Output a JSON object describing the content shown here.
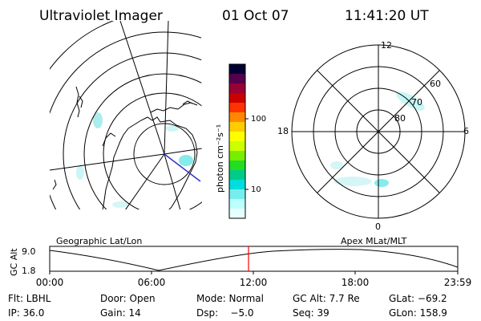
{
  "header": {
    "instrument": "Ultraviolet Imager",
    "date": "01 Oct 07",
    "time": "11:41:20 UT"
  },
  "left_panel": {
    "caption": "Geographic Lat/Lon"
  },
  "right_panel": {
    "caption": "Apex MLat/MLT",
    "mlt_labels": {
      "top": "12",
      "bottom": "0",
      "left": "18",
      "right": "6"
    },
    "mlat_labels": [
      "60",
      "70",
      "80"
    ]
  },
  "colorbar": {
    "label": "photon cm⁻²s⁻¹",
    "scale": "log",
    "ticks": [
      "100",
      "10"
    ],
    "colors": [
      "#000033",
      "#55004d",
      "#990033",
      "#cc0000",
      "#ff3300",
      "#ff8800",
      "#ffcc00",
      "#ffff00",
      "#ccff00",
      "#77ee00",
      "#22dd22",
      "#00cc88",
      "#00dddd",
      "#77eeee",
      "#bbffff",
      "#e8ffff"
    ]
  },
  "altitude_strip": {
    "ylabel": "GC Alt",
    "ytick_top": "9.0",
    "ytick_bottom": "1.8",
    "xticks": [
      "00:00",
      "06:00",
      "12:00",
      "18:00",
      "23:59"
    ],
    "current_time_color": "#ff0000"
  },
  "footer": {
    "row1": {
      "flt": "Flt: LBHL",
      "door": "Door: Open",
      "mode": "Mode: Normal",
      "gcalt": "GC Alt: 7.7 Re",
      "glat": "GLat: −69.2"
    },
    "row2": {
      "ip": "IP: 36.0",
      "gain": "Gain: 14",
      "dsp": "Dsp:    −5.0",
      "seq": "Seq: 39",
      "glon": "GLon: 158.9"
    }
  }
}
